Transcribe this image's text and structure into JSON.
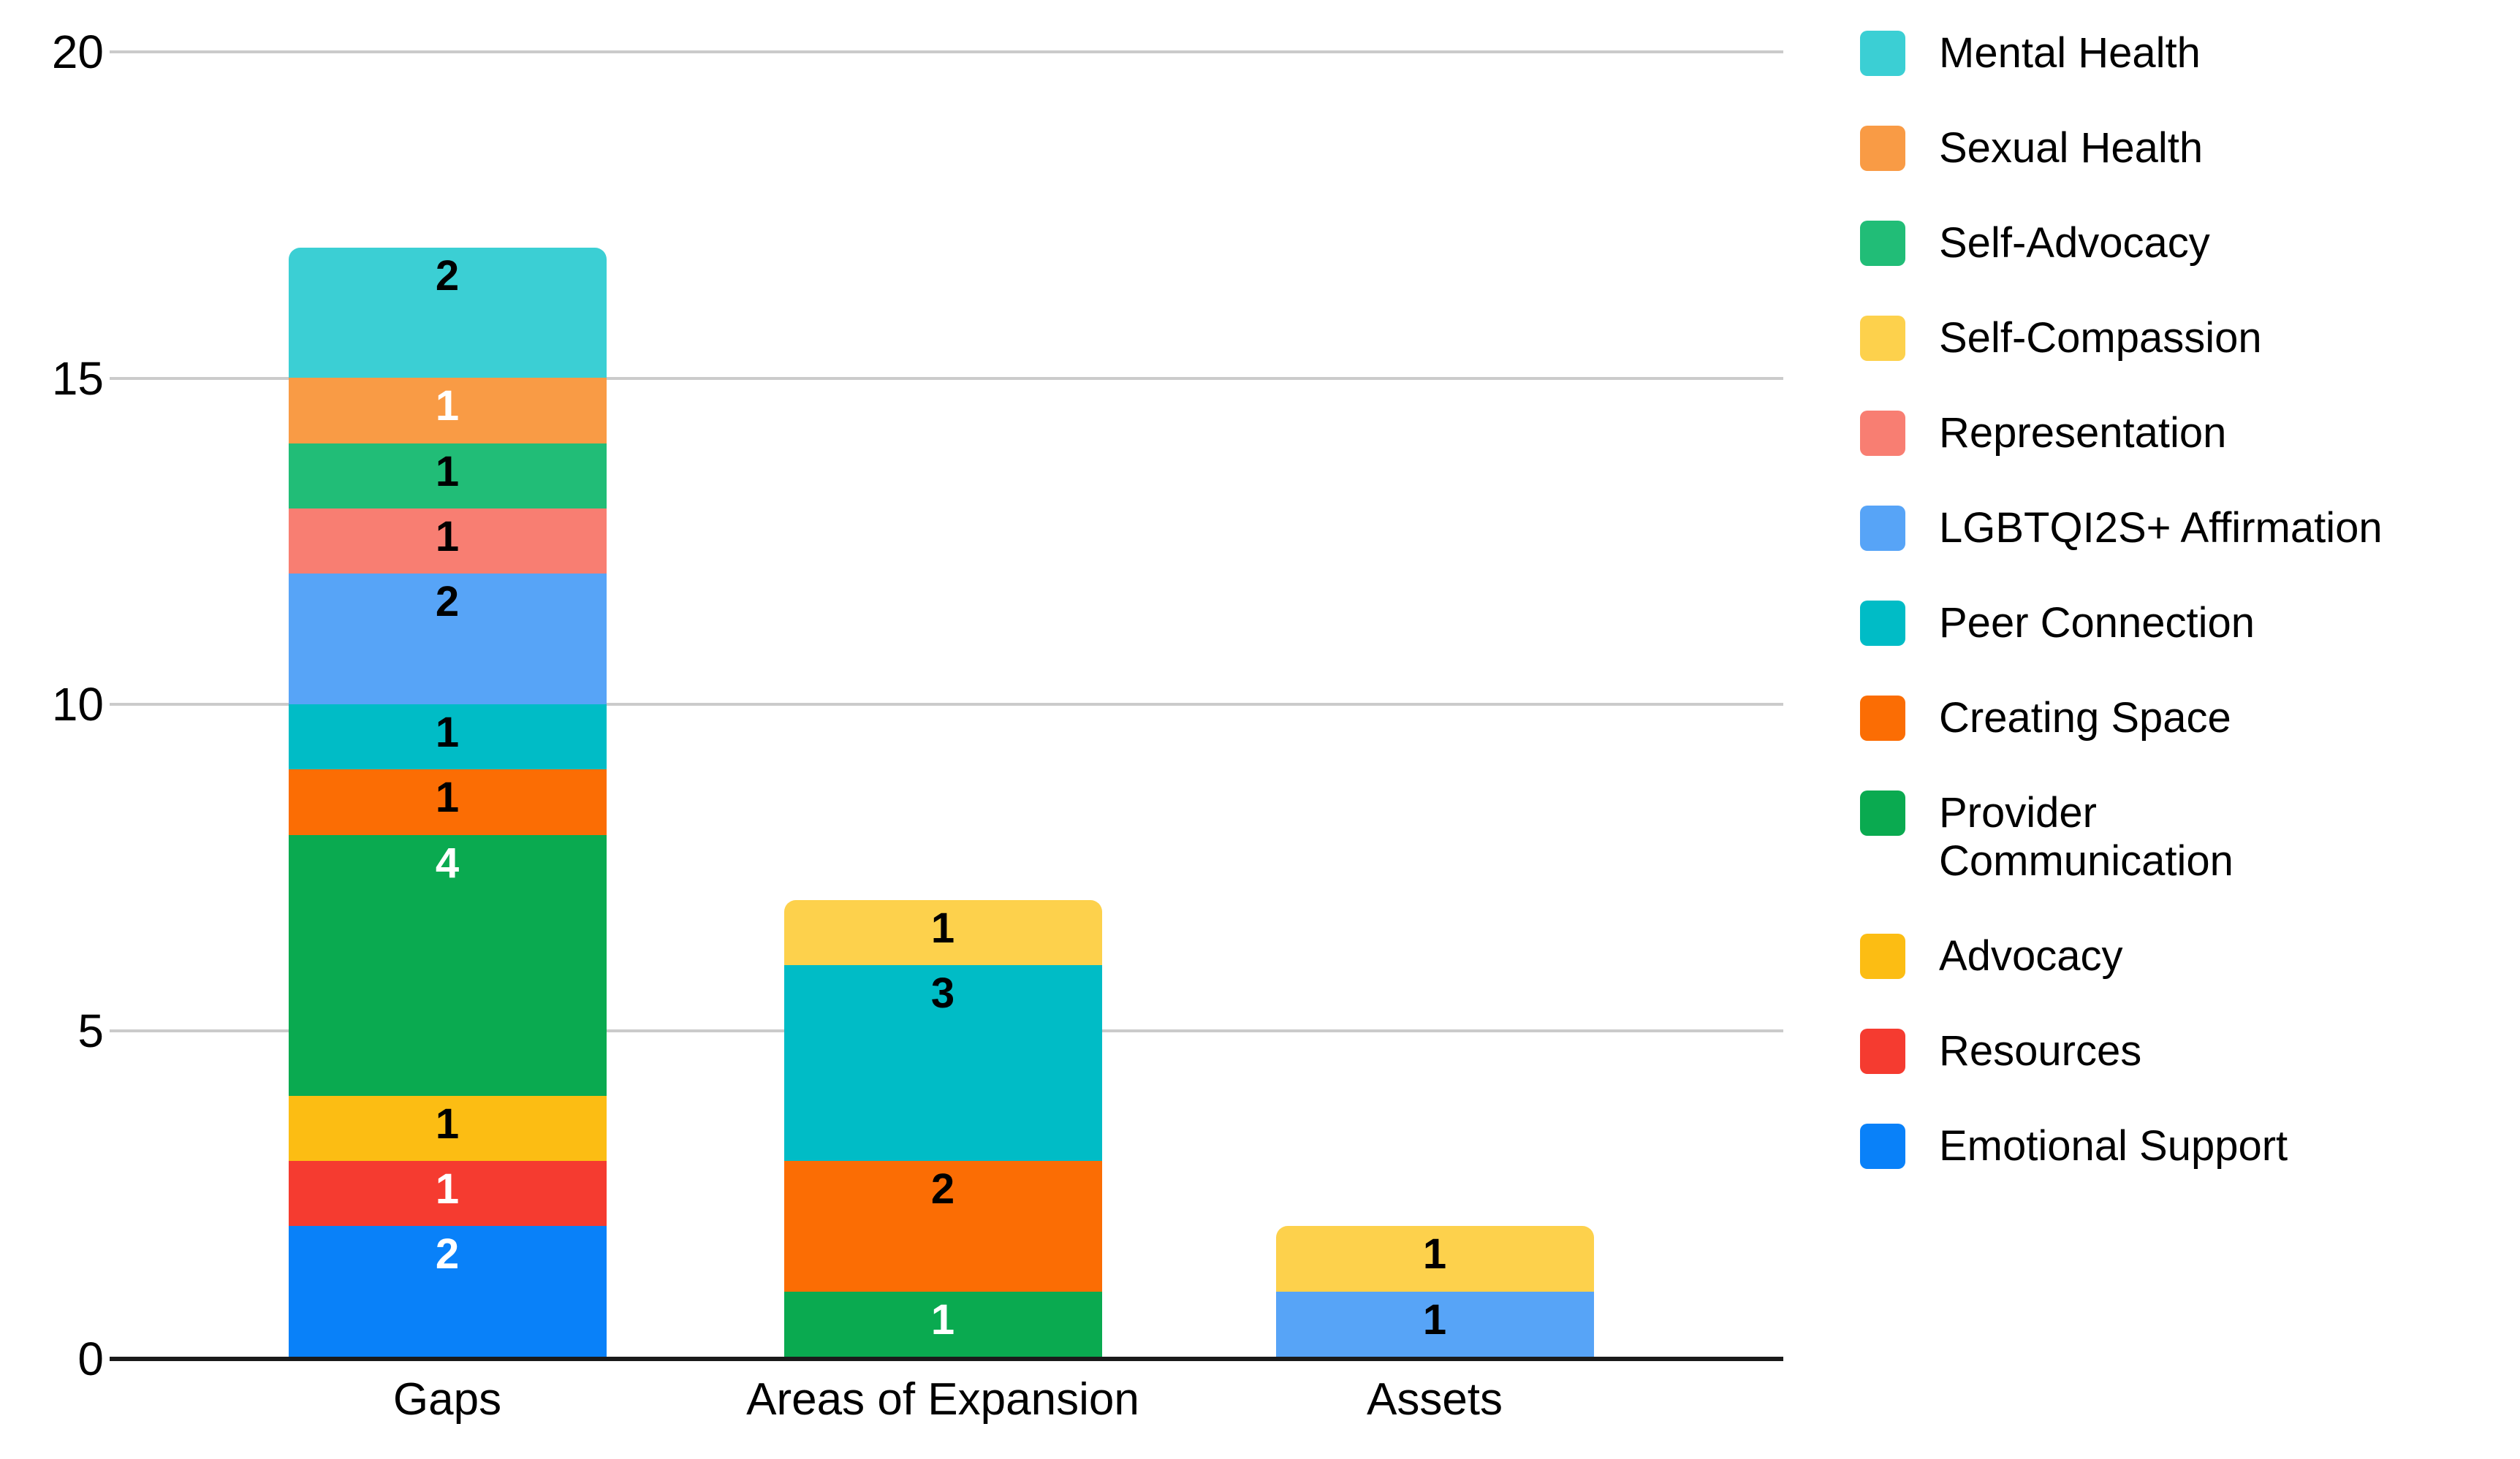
{
  "chart_data": {
    "type": "bar",
    "stacked": true,
    "title": "",
    "xlabel": "",
    "ylabel": "",
    "categories": [
      "Gaps",
      "Areas of Expansion",
      "Assets"
    ],
    "series": [
      {
        "name": "Mental Health",
        "legend_lines": [
          "Mental Health"
        ],
        "color": "#3BCFD4",
        "values": [
          2,
          0,
          0
        ],
        "label_colors": [
          "#000000",
          null,
          null
        ]
      },
      {
        "name": "Sexual Health",
        "legend_lines": [
          "Sexual Health"
        ],
        "color": "#F99B45",
        "values": [
          1,
          0,
          0
        ],
        "label_colors": [
          "#ffffff",
          null,
          null
        ]
      },
      {
        "name": "Self-Advocacy",
        "legend_lines": [
          "Self-Advocacy"
        ],
        "color": "#21BD77",
        "values": [
          1,
          0,
          0
        ],
        "label_colors": [
          "#000000",
          null,
          null
        ]
      },
      {
        "name": "Self-Compassion",
        "legend_lines": [
          "Self-Compassion"
        ],
        "color": "#FDD14C",
        "values": [
          0,
          1,
          1
        ],
        "label_colors": [
          null,
          "#000000",
          "#000000"
        ]
      },
      {
        "name": "Representation",
        "legend_lines": [
          "Representation"
        ],
        "color": "#F87E72",
        "values": [
          1,
          0,
          0
        ],
        "label_colors": [
          "#000000",
          null,
          null
        ]
      },
      {
        "name": "LGBTQI2S+ Affirmation",
        "legend_lines": [
          "LGBTQI2S+ Affirmation"
        ],
        "color": "#57A4F7",
        "values": [
          2,
          0,
          1
        ],
        "label_colors": [
          "#000000",
          null,
          "#000000"
        ]
      },
      {
        "name": "Peer Connection",
        "legend_lines": [
          "Peer Connection"
        ],
        "color": "#00BCC6",
        "values": [
          1,
          3,
          0
        ],
        "label_colors": [
          "#000000",
          "#000000",
          null
        ]
      },
      {
        "name": "Creating Space",
        "legend_lines": [
          "Creating Space"
        ],
        "color": "#FB6D04",
        "values": [
          1,
          2,
          0
        ],
        "label_colors": [
          "#000000",
          "#000000",
          null
        ]
      },
      {
        "name": "Provider Communication",
        "legend_lines": [
          "Provider",
          "Communication"
        ],
        "color": "#0AAA50",
        "values": [
          4,
          1,
          0
        ],
        "label_colors": [
          "#ffffff",
          "#ffffff",
          null
        ]
      },
      {
        "name": "Advocacy",
        "legend_lines": [
          "Advocacy"
        ],
        "color": "#FCBD13",
        "values": [
          1,
          0,
          0
        ],
        "label_colors": [
          "#000000",
          null,
          null
        ]
      },
      {
        "name": "Resources",
        "legend_lines": [
          "Resources"
        ],
        "color": "#F53B30",
        "values": [
          1,
          0,
          0
        ],
        "label_colors": [
          "#ffffff",
          null,
          null
        ]
      },
      {
        "name": "Emotional Support",
        "legend_lines": [
          "Emotional Support"
        ],
        "color": "#0981F9",
        "values": [
          2,
          0,
          0
        ],
        "label_colors": [
          "#ffffff",
          null,
          null
        ]
      }
    ],
    "y_axis": {
      "ticks": [
        0,
        5,
        10,
        15,
        20
      ],
      "ylim": [
        0,
        20
      ],
      "gridlines": true
    },
    "legend_position": "right"
  },
  "colors": {
    "gridline": "#cbcbcb",
    "axis": "#1a1a1a",
    "background": "#ffffff"
  }
}
